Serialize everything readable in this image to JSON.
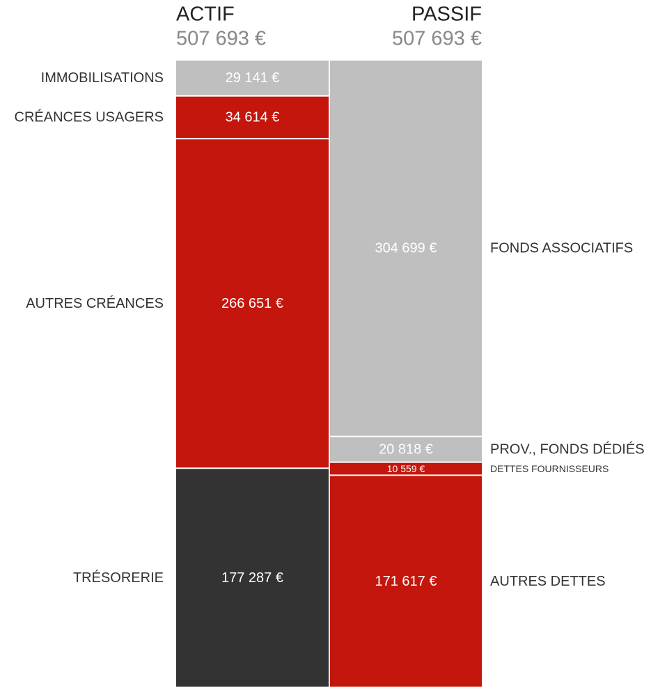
{
  "chart_data": {
    "type": "stacked-column",
    "columns": [
      {
        "name": "ACTIF",
        "total": 507693,
        "total_label": "507 693 €",
        "categories": [
          "IMMOBILISATIONS",
          "CRÉANCES USAGERS",
          "AUTRES CRÉANCES",
          "TRÉSORERIE"
        ],
        "values": [
          29141,
          34614,
          266651,
          177287
        ],
        "value_labels": [
          "29 141 €",
          "34 614 €",
          "266 651 €",
          "177 287 €"
        ],
        "colors": [
          "#bfbfbf",
          "#c4160c",
          "#c4160c",
          "#333333"
        ]
      },
      {
        "name": "PASSIF",
        "total": 507693,
        "total_label": "507 693 €",
        "categories": [
          "FONDS ASSOCIATIFS",
          "PROV., FONDS DÉDIÉS",
          "DETTES FOURNISSEURS",
          "AUTRES DETTES"
        ],
        "values": [
          304699,
          20818,
          10559,
          171617
        ],
        "value_labels": [
          "304 699 €",
          "20 818 €",
          "10 559 €",
          "171 617 €"
        ],
        "colors": [
          "#bfbfbf",
          "#bfbfbf",
          "#c4160c",
          "#c4160c"
        ]
      }
    ]
  }
}
